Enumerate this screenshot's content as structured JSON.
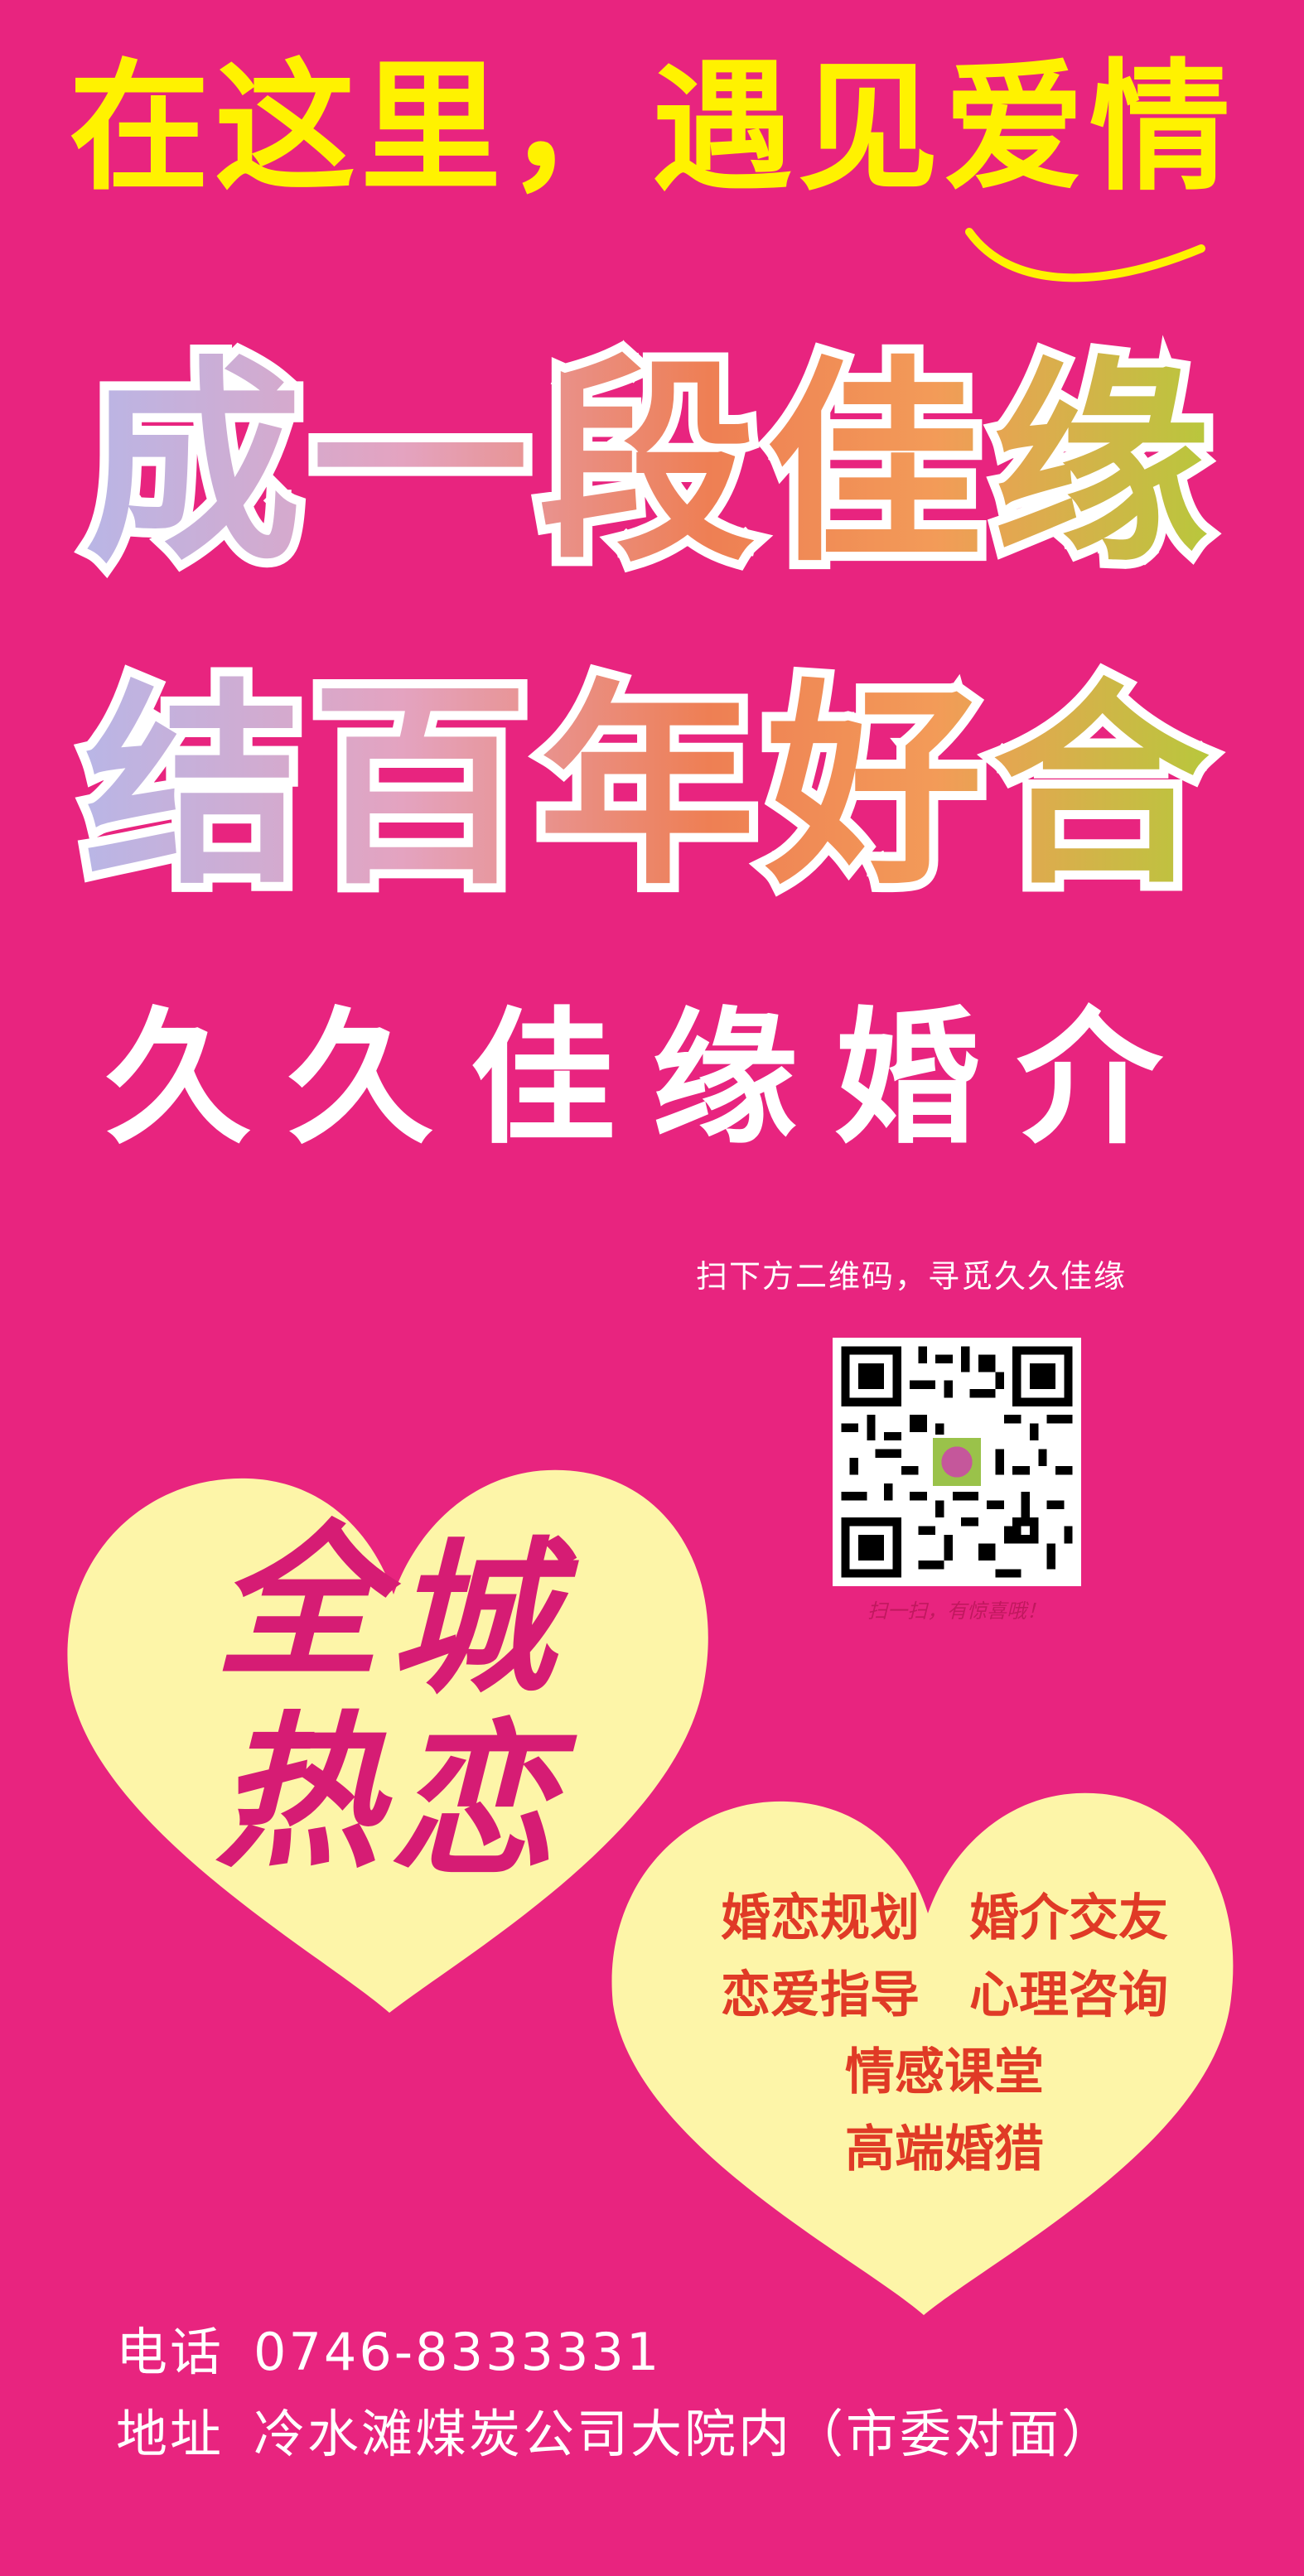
{
  "headline": "在这里，遇见爱情",
  "slogan_line1": "成一段佳缘",
  "slogan_line2": "结百年好合",
  "agency_name": "久久佳缘婚介",
  "scan_prompt": "扫下方二维码，寻觅久久佳缘",
  "qr_caption": "扫一扫，有惊喜哦！",
  "left_heart": {
    "chars": [
      "全",
      "城",
      "热",
      "恋"
    ]
  },
  "services": {
    "row1": [
      "婚恋规划",
      "婚介交友"
    ],
    "row2": [
      "恋爱指导",
      "心理咨询"
    ],
    "row3": [
      "情感课堂"
    ],
    "row4": [
      "高端婚猎"
    ]
  },
  "contact": {
    "phone_label": "电话",
    "phone": "0746-8333331",
    "address_label": "地址",
    "address": "冷水滩煤炭公司大院内（市委对面）"
  },
  "colors": {
    "background": "#e8247f",
    "headline": "#fff200",
    "heart": "#fdf5a8",
    "calligraphy": "#d61c74",
    "services": "#e03a26"
  }
}
